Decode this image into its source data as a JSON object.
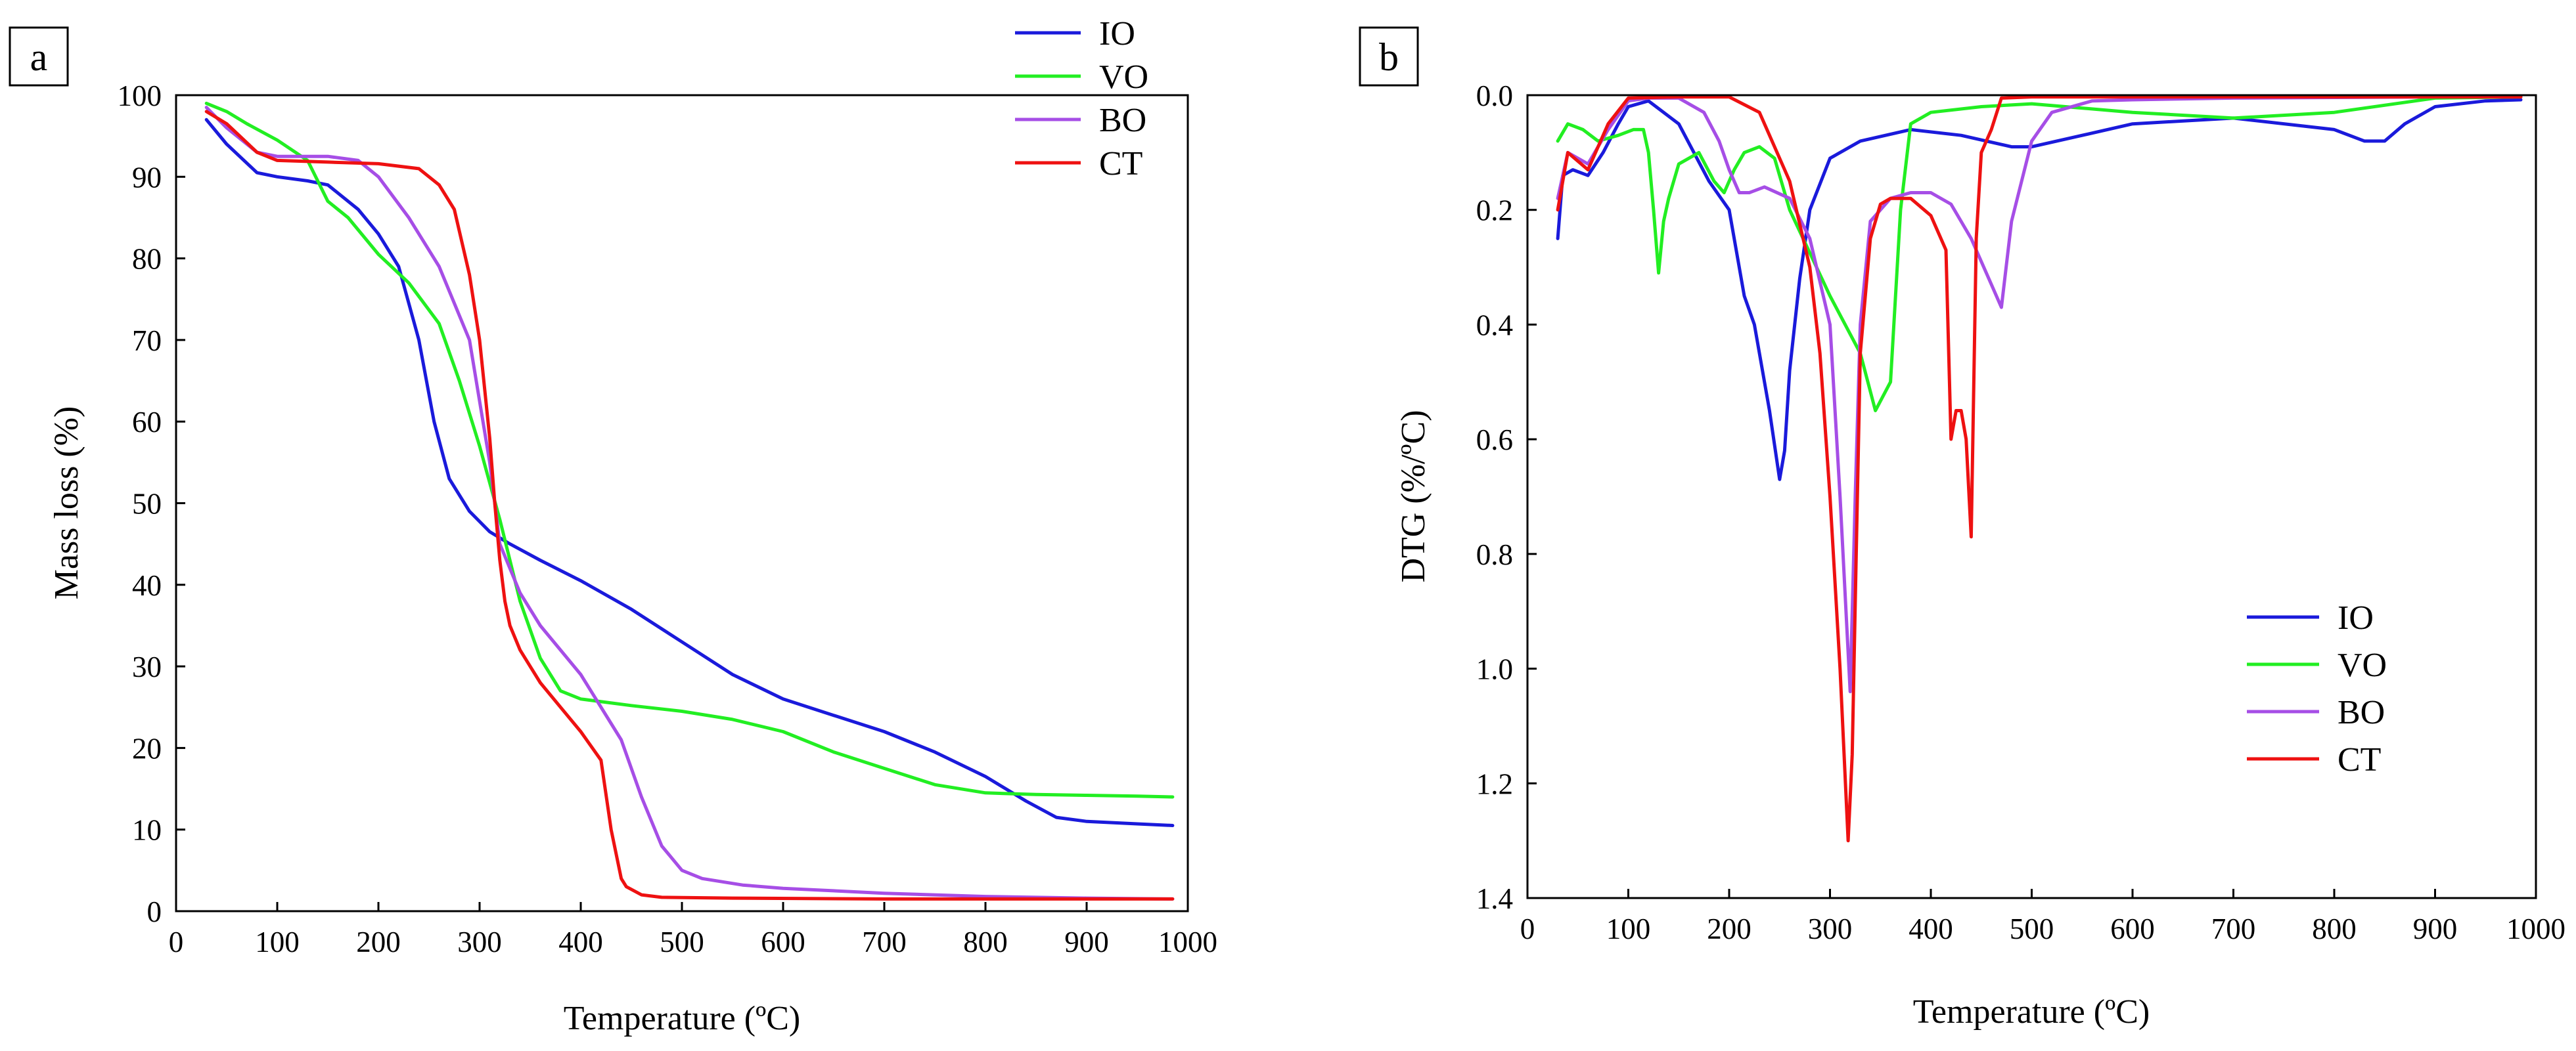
{
  "colors": {
    "IO": "#1a1adb",
    "VO": "#22ee22",
    "BO": "#a64ee6",
    "CT": "#ee1111"
  },
  "chart_data": [
    {
      "panel": "a",
      "type": "line",
      "xlabel": "Temperature (ºC)",
      "ylabel": "Mass loss (%)",
      "xlim": [
        0,
        1000
      ],
      "ylim": [
        0,
        100
      ],
      "xticks": [
        "0",
        "100",
        "200",
        "300",
        "400",
        "500",
        "600",
        "700",
        "800",
        "900",
        "1000"
      ],
      "yticks": [
        "0",
        "10",
        "20",
        "30",
        "40",
        "50",
        "60",
        "70",
        "80",
        "90",
        "100"
      ],
      "legend": {
        "position": "top-right",
        "entries": [
          "IO",
          "VO",
          "BO",
          "CT"
        ]
      },
      "series": [
        {
          "name": "IO",
          "x": [
            30,
            50,
            80,
            100,
            130,
            150,
            180,
            200,
            220,
            240,
            255,
            270,
            290,
            310,
            330,
            360,
            400,
            450,
            500,
            550,
            600,
            650,
            700,
            750,
            800,
            840,
            870,
            900,
            950,
            985
          ],
          "y": [
            97,
            94,
            90.5,
            90,
            89.5,
            89,
            86,
            83,
            79,
            70,
            60,
            53,
            49,
            46.5,
            45,
            43,
            40.5,
            37,
            33,
            29,
            26,
            24,
            22,
            19.5,
            16.5,
            13.5,
            11.5,
            11,
            10.7,
            10.5
          ]
        },
        {
          "name": "VO",
          "x": [
            30,
            50,
            70,
            100,
            130,
            150,
            170,
            200,
            230,
            260,
            280,
            300,
            320,
            340,
            360,
            380,
            400,
            450,
            500,
            550,
            600,
            650,
            700,
            750,
            800,
            850,
            900,
            950,
            985
          ],
          "y": [
            99,
            98,
            96.5,
            94.5,
            92,
            87,
            85,
            80.5,
            77,
            72,
            65,
            57,
            48,
            38,
            31,
            27,
            26,
            25.2,
            24.5,
            23.5,
            22,
            19.5,
            17.5,
            15.5,
            14.5,
            14.3,
            14.2,
            14.1,
            14
          ]
        },
        {
          "name": "BO",
          "x": [
            30,
            50,
            80,
            100,
            150,
            180,
            200,
            230,
            260,
            290,
            310,
            320,
            330,
            340,
            360,
            400,
            440,
            460,
            480,
            500,
            520,
            560,
            600,
            700,
            800,
            900,
            985
          ],
          "y": [
            98.5,
            96,
            93,
            92.5,
            92.5,
            92,
            90,
            85,
            79,
            70,
            55,
            45,
            42,
            39,
            35,
            29,
            21,
            14,
            8,
            5,
            4,
            3.2,
            2.8,
            2.2,
            1.8,
            1.6,
            1.5
          ]
        },
        {
          "name": "CT",
          "x": [
            30,
            50,
            80,
            100,
            150,
            200,
            240,
            260,
            275,
            290,
            300,
            310,
            315,
            320,
            325,
            330,
            340,
            360,
            380,
            400,
            420,
            430,
            440,
            445,
            460,
            480,
            550,
            700,
            985
          ],
          "y": [
            98,
            96.5,
            93,
            92,
            91.8,
            91.6,
            91,
            89,
            86,
            78,
            70,
            58,
            50,
            43,
            38,
            35,
            32,
            28,
            25,
            22,
            18.5,
            10,
            4,
            3,
            2,
            1.7,
            1.6,
            1.5,
            1.5
          ]
        }
      ]
    },
    {
      "panel": "b",
      "type": "line",
      "xlabel": "Temperature (ºC)",
      "ylabel": "DTG (%/ºC)",
      "xlim": [
        0,
        1000
      ],
      "ylim": [
        0,
        1.4
      ],
      "y_inverted": true,
      "xticks": [
        "0",
        "100",
        "200",
        "300",
        "400",
        "500",
        "600",
        "700",
        "800",
        "900",
        "1000"
      ],
      "yticks": [
        "0.0",
        "0.2",
        "0.4",
        "0.6",
        "0.8",
        "1.0",
        "1.2",
        "1.4"
      ],
      "legend": {
        "position": "bottom-right",
        "entries": [
          "IO",
          "VO",
          "BO",
          "CT"
        ]
      },
      "series": [
        {
          "name": "IO",
          "x": [
            30,
            35,
            45,
            60,
            75,
            90,
            100,
            120,
            150,
            180,
            200,
            215,
            225,
            240,
            250,
            255,
            260,
            270,
            280,
            300,
            330,
            380,
            430,
            480,
            500,
            550,
            600,
            700,
            800,
            830,
            850,
            870,
            900,
            950,
            985
          ],
          "y": [
            0.25,
            0.14,
            0.13,
            0.14,
            0.1,
            0.05,
            0.02,
            0.01,
            0.05,
            0.15,
            0.2,
            0.35,
            0.4,
            0.55,
            0.67,
            0.62,
            0.48,
            0.32,
            0.2,
            0.11,
            0.08,
            0.06,
            0.07,
            0.09,
            0.09,
            0.07,
            0.05,
            0.04,
            0.06,
            0.08,
            0.08,
            0.05,
            0.02,
            0.01,
            0.008
          ]
        },
        {
          "name": "VO",
          "x": [
            30,
            40,
            55,
            70,
            90,
            105,
            115,
            120,
            125,
            130,
            135,
            140,
            150,
            170,
            185,
            195,
            205,
            215,
            230,
            245,
            260,
            300,
            330,
            345,
            360,
            370,
            380,
            400,
            450,
            500,
            600,
            700,
            800,
            900,
            985
          ],
          "y": [
            0.08,
            0.05,
            0.06,
            0.08,
            0.07,
            0.06,
            0.06,
            0.1,
            0.2,
            0.31,
            0.22,
            0.18,
            0.12,
            0.1,
            0.15,
            0.17,
            0.13,
            0.1,
            0.09,
            0.11,
            0.2,
            0.35,
            0.45,
            0.55,
            0.5,
            0.2,
            0.05,
            0.03,
            0.02,
            0.015,
            0.03,
            0.04,
            0.03,
            0.005,
            0.003
          ]
        },
        {
          "name": "BO",
          "x": [
            30,
            40,
            60,
            80,
            100,
            120,
            150,
            175,
            190,
            200,
            210,
            220,
            235,
            260,
            280,
            300,
            310,
            320,
            325,
            330,
            340,
            360,
            380,
            400,
            420,
            440,
            460,
            470,
            480,
            500,
            520,
            560,
            600,
            700,
            800,
            900,
            985
          ],
          "y": [
            0.18,
            0.1,
            0.12,
            0.06,
            0.01,
            0.005,
            0.005,
            0.03,
            0.08,
            0.13,
            0.17,
            0.17,
            0.16,
            0.18,
            0.25,
            0.4,
            0.7,
            1.04,
            0.7,
            0.4,
            0.22,
            0.18,
            0.17,
            0.17,
            0.19,
            0.25,
            0.33,
            0.37,
            0.22,
            0.08,
            0.03,
            0.01,
            0.008,
            0.005,
            0.004,
            0.003,
            0.003
          ]
        },
        {
          "name": "CT",
          "x": [
            30,
            40,
            60,
            80,
            100,
            150,
            200,
            230,
            260,
            280,
            290,
            300,
            310,
            318,
            322,
            326,
            330,
            340,
            350,
            360,
            380,
            400,
            415,
            420,
            425,
            430,
            435,
            440,
            445,
            450,
            460,
            470,
            500,
            600,
            800,
            985
          ],
          "y": [
            0.2,
            0.1,
            0.13,
            0.05,
            0.005,
            0.003,
            0.003,
            0.03,
            0.15,
            0.3,
            0.45,
            0.7,
            1.0,
            1.3,
            1.15,
            0.8,
            0.45,
            0.25,
            0.19,
            0.18,
            0.18,
            0.21,
            0.27,
            0.6,
            0.55,
            0.55,
            0.6,
            0.77,
            0.25,
            0.1,
            0.06,
            0.005,
            0.003,
            0.003,
            0.003,
            0.003
          ]
        }
      ]
    }
  ]
}
